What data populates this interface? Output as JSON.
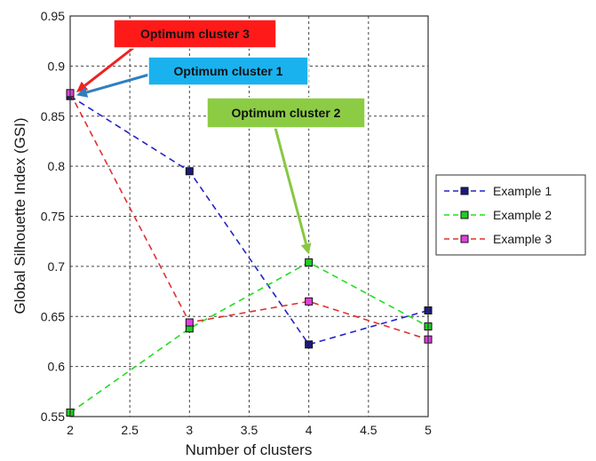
{
  "chart_data": {
    "type": "line",
    "xlabel": "Number of clusters",
    "ylabel": "Global Silhouette Index (GSI)",
    "xlim": [
      2,
      5
    ],
    "ylim": [
      0.55,
      0.95
    ],
    "x_ticks": [
      "2",
      "2.5",
      "3",
      "3.5",
      "4",
      "4.5",
      "5"
    ],
    "y_ticks": [
      "0.55",
      "0.6",
      "0.65",
      "0.7",
      "0.75",
      "0.8",
      "0.85",
      "0.9",
      "0.95"
    ],
    "grid": true,
    "legend_position": "right",
    "series": [
      {
        "name": "Example 1",
        "color": "#2222cc",
        "marker_fill": "#1a1a80",
        "x": [
          2,
          3,
          4,
          5
        ],
        "y": [
          0.87,
          0.795,
          0.622,
          0.656
        ]
      },
      {
        "name": "Example 2",
        "color": "#22dd22",
        "marker_fill": "#22cc22",
        "x": [
          2,
          3,
          4,
          5
        ],
        "y": [
          0.554,
          0.638,
          0.704,
          0.64
        ]
      },
      {
        "name": "Example 3",
        "color": "#e03030",
        "marker_fill": "#e040e0",
        "x": [
          2,
          3,
          4,
          5
        ],
        "y": [
          0.873,
          0.644,
          0.665,
          0.627
        ]
      }
    ],
    "annotations": [
      {
        "text": "Optimum cluster 3",
        "bg": "#ff1a1a",
        "arrow_color": "#ee2222",
        "target": [
          2,
          0.873
        ]
      },
      {
        "text": "Optimum cluster 1",
        "bg": "#1ab2ee",
        "arrow_color": "#2f7fc0",
        "target": [
          2,
          0.87
        ]
      },
      {
        "text": "Optimum cluster 2",
        "bg": "#8ccc44",
        "arrow_color": "#88c840",
        "target": [
          4,
          0.704
        ]
      }
    ]
  }
}
